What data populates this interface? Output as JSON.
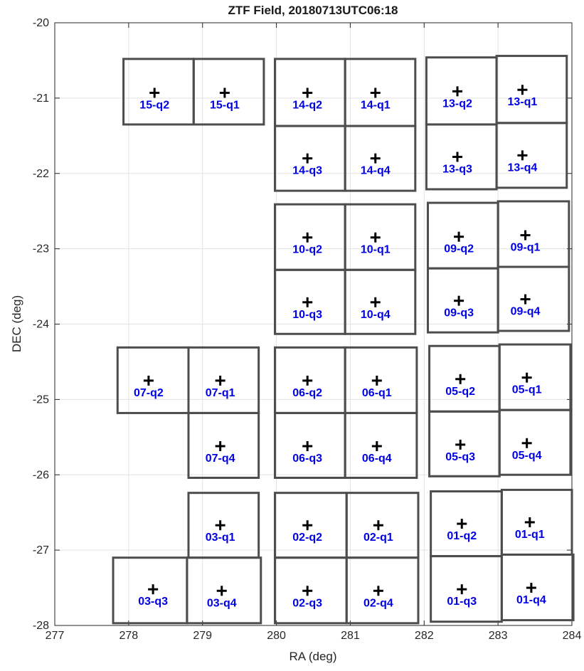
{
  "chart_data": {
    "type": "scatter",
    "title": "ZTF Field, 20180713UTC06:18",
    "xlabel": "RA (deg)",
    "ylabel": "DEC (deg)",
    "xlim": [
      277,
      284
    ],
    "ylim": [
      -28,
      -20
    ],
    "xticks": [
      277,
      278,
      279,
      280,
      281,
      282,
      283,
      284
    ],
    "yticks": [
      -28,
      -27,
      -26,
      -25,
      -24,
      -23,
      -22,
      -21,
      -20
    ],
    "grid": true,
    "colors": {
      "rect": "#4d4d4d",
      "label": "#0000e6",
      "marker": "#000000"
    },
    "quadrants": [
      {
        "label": "15-q2",
        "center": [
          278.35,
          -20.93
        ],
        "ra": [
          277.93,
          278.88
        ],
        "dec": [
          -21.35,
          -20.48
        ]
      },
      {
        "label": "15-q1",
        "center": [
          279.3,
          -20.93
        ],
        "ra": [
          278.88,
          279.83
        ],
        "dec": [
          -21.35,
          -20.48
        ]
      },
      {
        "label": "14-q2",
        "center": [
          280.42,
          -20.93
        ],
        "ra": [
          279.98,
          280.93
        ],
        "dec": [
          -21.37,
          -20.48
        ]
      },
      {
        "label": "14-q1",
        "center": [
          281.34,
          -20.93
        ],
        "ra": [
          280.93,
          281.88
        ],
        "dec": [
          -21.37,
          -20.48
        ]
      },
      {
        "label": "13-q2",
        "center": [
          282.45,
          -20.91
        ],
        "ra": [
          282.03,
          282.98
        ],
        "dec": [
          -21.35,
          -20.46
        ]
      },
      {
        "label": "13-q1",
        "center": [
          283.33,
          -20.89
        ],
        "ra": [
          282.98,
          283.93
        ],
        "dec": [
          -21.33,
          -20.44
        ]
      },
      {
        "label": "14-q3",
        "center": [
          280.42,
          -21.8
        ],
        "ra": [
          279.98,
          280.93
        ],
        "dec": [
          -22.23,
          -21.37
        ]
      },
      {
        "label": "14-q4",
        "center": [
          281.34,
          -21.8
        ],
        "ra": [
          280.93,
          281.88
        ],
        "dec": [
          -22.23,
          -21.37
        ]
      },
      {
        "label": "13-q3",
        "center": [
          282.45,
          -21.78
        ],
        "ra": [
          282.03,
          282.98
        ],
        "dec": [
          -22.21,
          -21.35
        ]
      },
      {
        "label": "13-q4",
        "center": [
          283.33,
          -21.76
        ],
        "ra": [
          282.98,
          283.93
        ],
        "dec": [
          -22.19,
          -21.33
        ]
      },
      {
        "label": "10-q2",
        "center": [
          280.42,
          -22.85
        ],
        "ra": [
          279.98,
          280.93
        ],
        "dec": [
          -23.28,
          -22.41
        ]
      },
      {
        "label": "10-q1",
        "center": [
          281.34,
          -22.85
        ],
        "ra": [
          280.93,
          281.88
        ],
        "dec": [
          -23.28,
          -22.41
        ]
      },
      {
        "label": "09-q2",
        "center": [
          282.47,
          -22.84
        ],
        "ra": [
          282.05,
          283.0
        ],
        "dec": [
          -23.26,
          -22.39
        ]
      },
      {
        "label": "09-q1",
        "center": [
          283.37,
          -22.82
        ],
        "ra": [
          283.0,
          283.96
        ],
        "dec": [
          -23.24,
          -22.37
        ]
      },
      {
        "label": "10-q3",
        "center": [
          280.42,
          -23.71
        ],
        "ra": [
          279.98,
          280.93
        ],
        "dec": [
          -24.13,
          -23.28
        ]
      },
      {
        "label": "10-q4",
        "center": [
          281.34,
          -23.71
        ],
        "ra": [
          280.93,
          281.88
        ],
        "dec": [
          -24.13,
          -23.28
        ]
      },
      {
        "label": "09-q3",
        "center": [
          282.47,
          -23.69
        ],
        "ra": [
          282.05,
          283.0
        ],
        "dec": [
          -24.11,
          -23.26
        ]
      },
      {
        "label": "09-q4",
        "center": [
          283.37,
          -23.67
        ],
        "ra": [
          283.0,
          283.96
        ],
        "dec": [
          -24.09,
          -23.24
        ]
      },
      {
        "label": "07-q2",
        "center": [
          278.27,
          -24.75
        ],
        "ra": [
          277.85,
          278.81
        ],
        "dec": [
          -25.18,
          -24.31
        ]
      },
      {
        "label": "07-q1",
        "center": [
          279.24,
          -24.75
        ],
        "ra": [
          278.81,
          279.76
        ],
        "dec": [
          -25.18,
          -24.31
        ]
      },
      {
        "label": "06-q2",
        "center": [
          280.42,
          -24.75
        ],
        "ra": [
          279.98,
          280.93
        ],
        "dec": [
          -25.18,
          -24.31
        ]
      },
      {
        "label": "06-q1",
        "center": [
          281.36,
          -24.75
        ],
        "ra": [
          280.93,
          281.9
        ],
        "dec": [
          -25.18,
          -24.31
        ]
      },
      {
        "label": "05-q2",
        "center": [
          282.49,
          -24.73
        ],
        "ra": [
          282.07,
          283.02
        ],
        "dec": [
          -25.16,
          -24.29
        ]
      },
      {
        "label": "05-q1",
        "center": [
          283.39,
          -24.71
        ],
        "ra": [
          283.02,
          283.98
        ],
        "dec": [
          -25.14,
          -24.27
        ]
      },
      {
        "label": "07-q4",
        "center": [
          279.24,
          -25.62
        ],
        "ra": [
          278.81,
          279.76
        ],
        "dec": [
          -26.04,
          -25.18
        ]
      },
      {
        "label": "06-q3",
        "center": [
          280.42,
          -25.62
        ],
        "ra": [
          279.98,
          280.93
        ],
        "dec": [
          -26.04,
          -25.18
        ]
      },
      {
        "label": "06-q4",
        "center": [
          281.36,
          -25.62
        ],
        "ra": [
          280.93,
          281.9
        ],
        "dec": [
          -26.04,
          -25.18
        ]
      },
      {
        "label": "05-q3",
        "center": [
          282.49,
          -25.6
        ],
        "ra": [
          282.07,
          283.02
        ],
        "dec": [
          -26.02,
          -25.16
        ]
      },
      {
        "label": "05-q4",
        "center": [
          283.39,
          -25.58
        ],
        "ra": [
          283.02,
          283.98
        ],
        "dec": [
          -26.0,
          -25.14
        ]
      },
      {
        "label": "03-q1",
        "center": [
          279.24,
          -26.67
        ],
        "ra": [
          278.81,
          279.76
        ],
        "dec": [
          -27.1,
          -26.24
        ]
      },
      {
        "label": "02-q2",
        "center": [
          280.42,
          -26.67
        ],
        "ra": [
          279.98,
          280.95
        ],
        "dec": [
          -27.1,
          -26.24
        ]
      },
      {
        "label": "02-q1",
        "center": [
          281.38,
          -26.67
        ],
        "ra": [
          280.95,
          281.92
        ],
        "dec": [
          -27.1,
          -26.24
        ]
      },
      {
        "label": "01-q2",
        "center": [
          282.51,
          -26.65
        ],
        "ra": [
          282.09,
          283.05
        ],
        "dec": [
          -27.08,
          -26.22
        ]
      },
      {
        "label": "01-q1",
        "center": [
          283.43,
          -26.63
        ],
        "ra": [
          283.05,
          284.0
        ],
        "dec": [
          -27.06,
          -26.2
        ]
      },
      {
        "label": "03-q3",
        "center": [
          278.33,
          -27.52
        ],
        "ra": [
          277.79,
          278.79
        ],
        "dec": [
          -27.97,
          -27.1
        ]
      },
      {
        "label": "03-q4",
        "center": [
          279.26,
          -27.54
        ],
        "ra": [
          278.79,
          279.79
        ],
        "dec": [
          -27.97,
          -27.1
        ]
      },
      {
        "label": "02-q3",
        "center": [
          280.42,
          -27.54
        ],
        "ra": [
          279.98,
          280.95
        ],
        "dec": [
          -27.97,
          -27.1
        ]
      },
      {
        "label": "02-q4",
        "center": [
          281.38,
          -27.54
        ],
        "ra": [
          280.95,
          281.92
        ],
        "dec": [
          -27.97,
          -27.1
        ]
      },
      {
        "label": "01-q3",
        "center": [
          282.51,
          -27.52
        ],
        "ra": [
          282.09,
          283.05
        ],
        "dec": [
          -27.95,
          -27.08
        ]
      },
      {
        "label": "01-q4",
        "center": [
          283.45,
          -27.5
        ],
        "ra": [
          283.05,
          284.02
        ],
        "dec": [
          -27.93,
          -27.06
        ]
      }
    ]
  }
}
